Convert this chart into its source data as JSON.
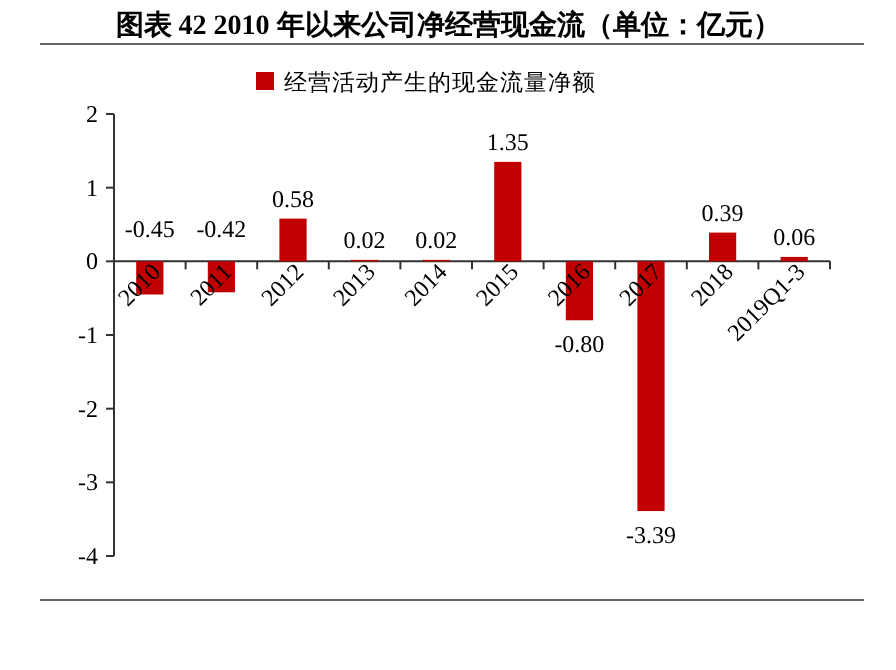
{
  "chart_data": {
    "type": "bar",
    "title": "图表 42   2010 年以来公司净经营现金流（单位：亿元）",
    "categories": [
      "2010",
      "2011",
      "2012",
      "2013",
      "2014",
      "2015",
      "2016",
      "2017",
      "2018",
      "2019Q1-3"
    ],
    "series": [
      {
        "name": "经营活动产生的现金流量净额",
        "color": "#c00000",
        "values": [
          -0.45,
          -0.42,
          0.58,
          0.02,
          0.02,
          1.35,
          -0.8,
          -3.39,
          0.39,
          0.06
        ],
        "value_labels": [
          "-0.45",
          "-0.42",
          "0.58",
          "0.02",
          "0.02",
          "1.35",
          "-0.80",
          "-3.39",
          "0.39",
          "0.06"
        ]
      }
    ],
    "ylim": [
      -4,
      2
    ],
    "yticks": [
      -4,
      -3,
      -2,
      -1,
      0,
      1,
      2
    ],
    "legend": "top",
    "grid": false
  }
}
